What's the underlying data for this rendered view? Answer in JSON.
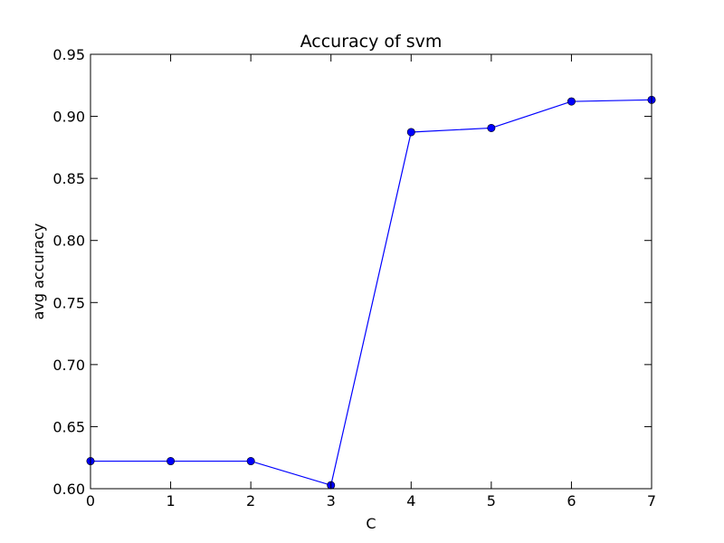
{
  "chart_data": {
    "type": "line",
    "title": "Accuracy of svm",
    "xlabel": "C",
    "ylabel": "avg accuracy",
    "xlim": [
      0,
      7
    ],
    "ylim": [
      0.6,
      0.95
    ],
    "x_ticks": [
      "0",
      "1",
      "2",
      "3",
      "4",
      "5",
      "6",
      "7"
    ],
    "y_ticks": [
      "0.60",
      "0.65",
      "0.70",
      "0.75",
      "0.80",
      "0.85",
      "0.90",
      "0.95"
    ],
    "grid": false,
    "series": [
      {
        "x": [
          0,
          1,
          2,
          3,
          4,
          5,
          6,
          7
        ],
        "values": [
          0.6222,
          0.6222,
          0.6222,
          0.6028,
          0.8873,
          0.8906,
          0.912,
          0.9133
        ],
        "color": "#0000ff",
        "marker": "circle"
      }
    ]
  }
}
